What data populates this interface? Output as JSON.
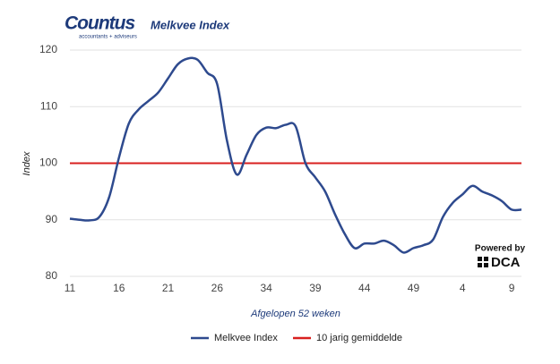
{
  "logo": {
    "name": "Countus",
    "tagline": "accountants + adviseurs"
  },
  "badge": {
    "label": "Powered by",
    "name": "DCA"
  },
  "chart_data": {
    "type": "line",
    "title": "Melkvee Index",
    "y_label": "Index",
    "x_label": "Afgelopen 52 weken",
    "categories": [
      "11",
      null,
      null,
      null,
      null,
      "16",
      null,
      null,
      null,
      null,
      "21",
      null,
      null,
      null,
      null,
      "26",
      null,
      null,
      null,
      null,
      "34",
      null,
      null,
      null,
      null,
      "39",
      null,
      null,
      null,
      null,
      "44",
      null,
      null,
      null,
      null,
      "49",
      null,
      null,
      null,
      null,
      "4",
      null,
      null,
      null,
      null,
      "9",
      null
    ],
    "series": [
      {
        "name": "Melkvee Index",
        "color": "#2e4a8e",
        "values": [
          90.2,
          90,
          89.9,
          90.5,
          94,
          101,
          107,
          109.5,
          111,
          112.5,
          115,
          117.5,
          118.5,
          118.3,
          116,
          114,
          104,
          98,
          101.5,
          105,
          106.3,
          106.2,
          106.8,
          106.5,
          100,
          97.5,
          95,
          91,
          87.5,
          85,
          85.8,
          85.8,
          86.3,
          85.5,
          84.2,
          85,
          85.5,
          86.5,
          90.5,
          93,
          94.5,
          96,
          95,
          94.3,
          93.3,
          91.8,
          91.8
        ]
      }
    ],
    "reference": {
      "name": "10 jarig gemiddelde",
      "value": 100,
      "color": "#d8201f"
    },
    "ylim": [
      80,
      120
    ],
    "yticks": [
      80,
      90,
      100,
      110,
      120
    ],
    "grid": true
  }
}
